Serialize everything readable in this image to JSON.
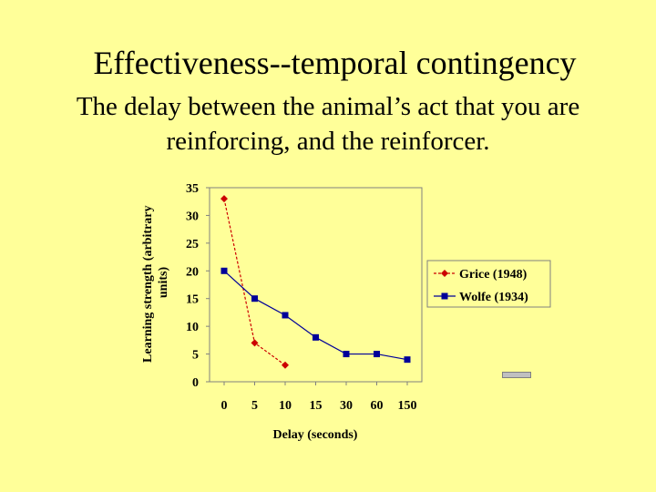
{
  "slide": {
    "title": "Effectiveness--temporal contingency",
    "subtitle": "The delay between the animal’s act that you are reinforcing, and the reinforcer."
  },
  "chart_data": {
    "type": "line",
    "categories": [
      "0",
      "5",
      "10",
      "15",
      "30",
      "60",
      "150"
    ],
    "ylabel": "Learning strength (arbitrary units)",
    "xlabel": "Delay (seconds)",
    "ylim": [
      0,
      35
    ],
    "yticks": [
      0,
      5,
      10,
      15,
      20,
      25,
      30,
      35
    ],
    "grid": false,
    "legend_position": "right",
    "series": [
      {
        "name": "Grice (1948)",
        "color": "#CC0000",
        "marker": "diamond",
        "dashed": true,
        "values": [
          33,
          7,
          3,
          null,
          null,
          null,
          null
        ]
      },
      {
        "name": "Wolfe (1934)",
        "color": "#000099",
        "marker": "square",
        "dashed": false,
        "values": [
          20,
          15,
          12,
          8,
          5,
          5,
          4
        ]
      }
    ]
  }
}
